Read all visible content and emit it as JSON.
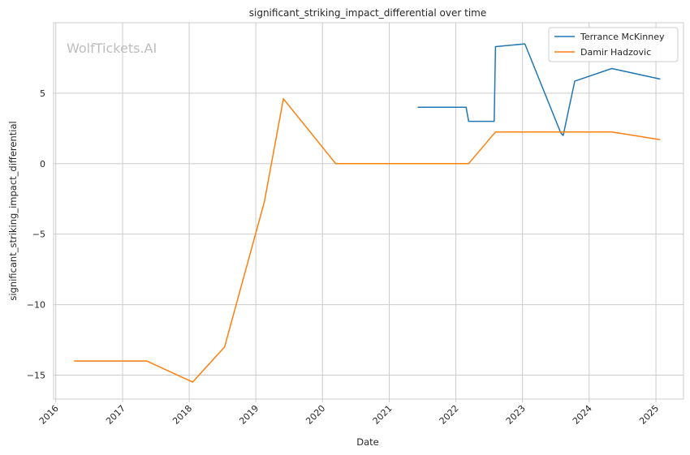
{
  "chart_data": {
    "type": "line",
    "title": "significant_striking_impact_differential over time",
    "xlabel": "Date",
    "ylabel": "significant_striking_impact_differential",
    "watermark": "WolfTickets.AI",
    "x_ticks": [
      "2016",
      "2017",
      "2018",
      "2019",
      "2020",
      "2021",
      "2022",
      "2023",
      "2024",
      "2025"
    ],
    "y_ticks": [
      -15,
      -10,
      -5,
      0,
      5
    ],
    "y_tick_labels": [
      "−15",
      "−10",
      "−5",
      "0",
      "5"
    ],
    "xlim": [
      "2015-12-20",
      "2025-06-01"
    ],
    "ylim": [
      -16.7,
      10.0
    ],
    "grid": true,
    "legend_position": "top-right",
    "series": [
      {
        "name": "Terrance McKinney",
        "color": "#1f77b4",
        "points": [
          [
            "2021-06-05",
            4.0
          ],
          [
            "2022-02-26",
            4.0
          ],
          [
            "2022-03-12",
            3.0
          ],
          [
            "2022-07-30",
            3.0
          ],
          [
            "2022-08-06",
            8.3
          ],
          [
            "2023-01-14",
            8.5
          ],
          [
            "2023-07-29",
            2.2
          ],
          [
            "2023-08-12",
            2.0
          ],
          [
            "2023-10-14",
            5.85
          ],
          [
            "2024-05-04",
            6.75
          ],
          [
            "2025-01-25",
            6.0
          ]
        ]
      },
      {
        "name": "Damir Hadzovic",
        "color": "#ff7f0e",
        "points": [
          [
            "2016-04-10",
            -14.0
          ],
          [
            "2017-05-13",
            -14.0
          ],
          [
            "2018-01-20",
            -15.5
          ],
          [
            "2018-07-14",
            -13.0
          ],
          [
            "2019-02-17",
            -2.7
          ],
          [
            "2019-06-01",
            4.6
          ],
          [
            "2020-03-14",
            0.0
          ],
          [
            "2022-03-12",
            0.0
          ],
          [
            "2022-08-06",
            2.25
          ],
          [
            "2024-05-04",
            2.25
          ],
          [
            "2025-01-25",
            1.7
          ]
        ]
      }
    ]
  }
}
